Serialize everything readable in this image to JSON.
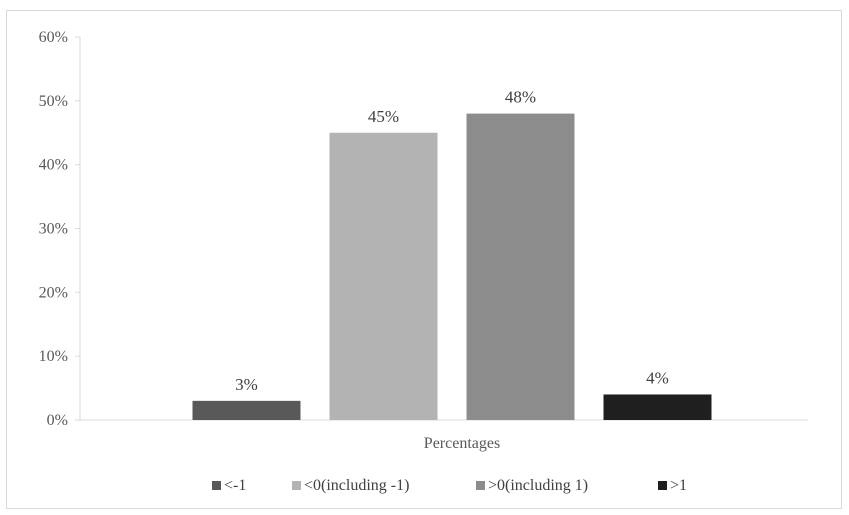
{
  "chart_data": {
    "type": "bar",
    "title": "",
    "xlabel": "Percentages",
    "ylabel": "",
    "category": "Percentages",
    "ylim": [
      0,
      60
    ],
    "yticks": [
      0,
      10,
      20,
      30,
      40,
      50,
      60
    ],
    "ytick_labels": [
      "0%",
      "10%",
      "20%",
      "30%",
      "40%",
      "50%",
      "60%"
    ],
    "grid": false,
    "legend_position": "bottom",
    "series": [
      {
        "name": "<-1",
        "value": 3,
        "label": "3%",
        "color": "#595959"
      },
      {
        "name": "<0(including -1)",
        "value": 45,
        "label": "45%",
        "color": "#b3b3b3"
      },
      {
        "name": ">0(including 1)",
        "value": 48,
        "label": "48%",
        "color": "#8c8c8c"
      },
      {
        "name": ">1",
        "value": 4,
        "label": "4%",
        "color": "#1f1f1f"
      }
    ]
  }
}
